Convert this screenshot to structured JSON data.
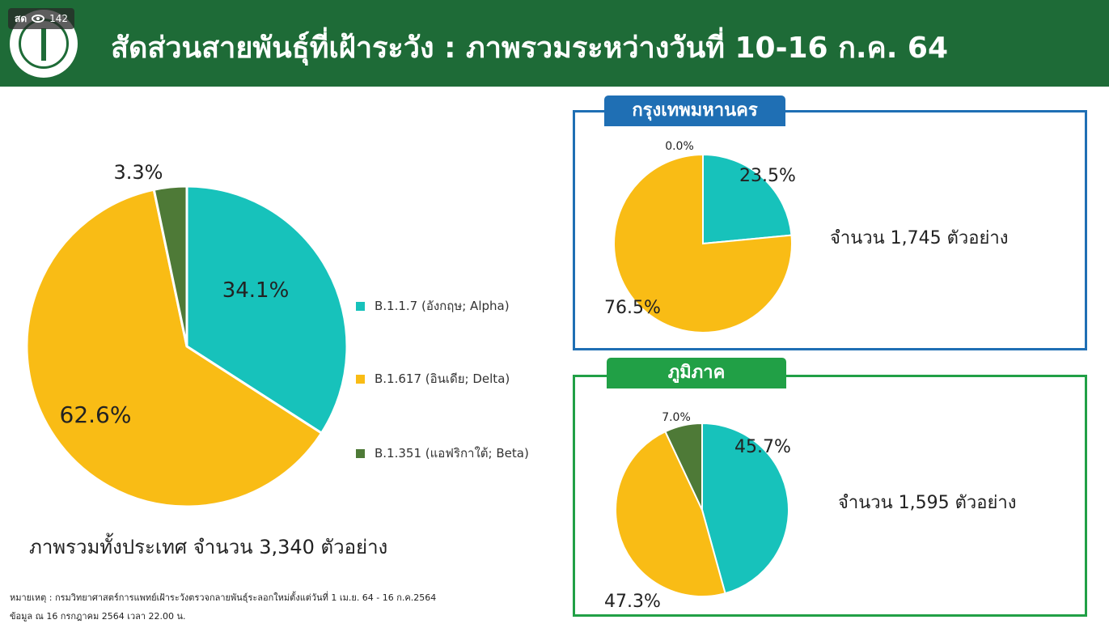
{
  "header": {
    "title": "สัดส่วนสายพันธุ์ที่เฝ้าระวัง : ภาพรวมระหว่างวันที่ 10-16 ก.ค. 64",
    "live_label": "สด",
    "viewer_count": "142",
    "background_color": "#1e6b37"
  },
  "colors": {
    "alpha": "#17c2bb",
    "delta": "#f9bc15",
    "beta": "#4e7a37",
    "bangkok_frame": "#1f6fb4",
    "region_frame": "#21a046"
  },
  "legend": {
    "items": [
      {
        "label": "B.1.1.7 (อังกฤษ; Alpha)",
        "color": "#17c2bb",
        "icon": "square-swatch"
      },
      {
        "label": "B.1.617 (อินเดีย; Delta)",
        "color": "#f9bc15",
        "icon": "square-swatch"
      },
      {
        "label": "B.1.351 (แอฟริกาใต้; Beta)",
        "color": "#4e7a37",
        "icon": "square-swatch"
      }
    ]
  },
  "chart_data": [
    {
      "type": "pie",
      "title": "",
      "slices": [
        {
          "label": "B.1.1.7 (อังกฤษ; Alpha)",
          "value": 34.1,
          "text": "34.1%",
          "color": "#17c2bb"
        },
        {
          "label": "B.1.617 (อินเดีย; Delta)",
          "value": 62.6,
          "text": "62.6%",
          "color": "#f9bc15"
        },
        {
          "label": "B.1.351 (แอฟริกาใต้; Beta)",
          "value": 3.3,
          "text": "3.3%",
          "color": "#4e7a37"
        }
      ],
      "caption": "ภาพรวมทั้งประเทศ จำนวน 3,340 ตัวอย่าง"
    },
    {
      "type": "pie",
      "title": "กรุงเทพมหานคร",
      "slices": [
        {
          "label": "B.1.1.7 (อังกฤษ; Alpha)",
          "value": 23.5,
          "text": "23.5%",
          "color": "#17c2bb"
        },
        {
          "label": "B.1.617 (อินเดีย; Delta)",
          "value": 76.5,
          "text": "76.5%",
          "color": "#f9bc15"
        },
        {
          "label": "B.1.351 (แอฟริกาใต้; Beta)",
          "value": 0.0,
          "text": "0.0%",
          "color": "#4e7a37"
        }
      ],
      "caption": "จำนวน 1,745 ตัวอย่าง"
    },
    {
      "type": "pie",
      "title": "ภูมิภาค",
      "slices": [
        {
          "label": "B.1.1.7 (อังกฤษ; Alpha)",
          "value": 45.7,
          "text": "45.7%",
          "color": "#17c2bb"
        },
        {
          "label": "B.1.617 (อินเดีย; Delta)",
          "value": 47.3,
          "text": "47.3%",
          "color": "#f9bc15"
        },
        {
          "label": "B.1.351 (แอฟริกาใต้; Beta)",
          "value": 7.0,
          "text": "7.0%",
          "color": "#4e7a37"
        }
      ],
      "caption": "จำนวน 1,595 ตัวอย่าง"
    }
  ],
  "footnote": {
    "line1": "หมายเหตุ :  กรมวิทยาศาสตร์การแพทย์เฝ้าระวังตรวจกลายพันธุ์ระลอกใหม่ตั้งแต่วันที่ 1 เม.ย. 64 -  16 ก.ค.2564",
    "line2": "ข้อมูล ณ 16 กรกฎาคม 2564 เวลา 22.00 น."
  }
}
